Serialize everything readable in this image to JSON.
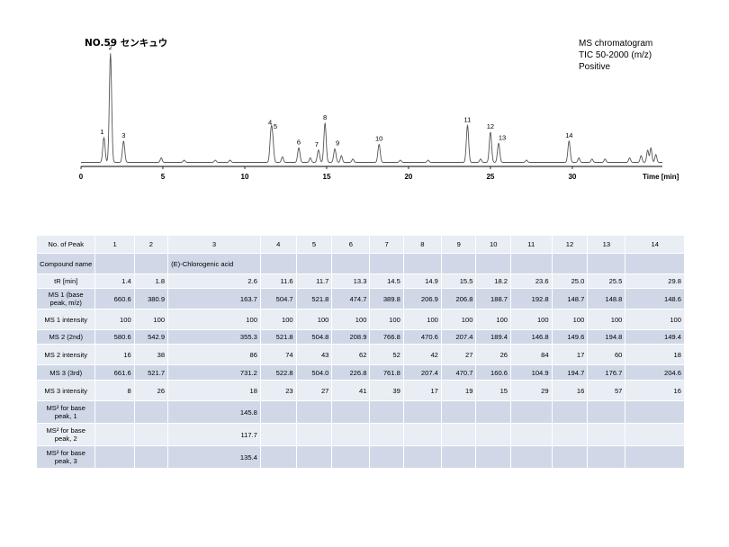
{
  "page": {
    "sample_title": "NO.59 センキュウ",
    "info": [
      "MS chromatogram",
      "TIC 50-2000 (m/z)",
      "Positive"
    ]
  },
  "chart_data": {
    "type": "line",
    "title": "",
    "xlabel": "Time [min]",
    "ylabel": "",
    "xlim": [
      0,
      35.5
    ],
    "ylim": [
      0,
      1
    ],
    "x_ticks": [
      0,
      5,
      10,
      15,
      20,
      25,
      30
    ],
    "grid": false,
    "baseline": 0.02,
    "peaks": [
      {
        "label": "1",
        "x": 1.4,
        "y": 0.22
      },
      {
        "label": "2",
        "x": 1.8,
        "y": 0.97
      },
      {
        "label": "3",
        "x": 2.6,
        "y": 0.19
      },
      {
        "label": "4",
        "x": 11.6,
        "y": 0.24
      },
      {
        "label": "5",
        "x": 11.7,
        "y": 0.18
      },
      {
        "label": "6",
        "x": 13.3,
        "y": 0.13
      },
      {
        "label": "7",
        "x": 14.5,
        "y": 0.11
      },
      {
        "label": "8",
        "x": 14.9,
        "y": 0.35
      },
      {
        "label": "9",
        "x": 15.5,
        "y": 0.12
      },
      {
        "label": "10",
        "x": 18.2,
        "y": 0.16
      },
      {
        "label": "11",
        "x": 23.6,
        "y": 0.33
      },
      {
        "label": "12",
        "x": 25.0,
        "y": 0.27
      },
      {
        "label": "13",
        "x": 25.5,
        "y": 0.17
      },
      {
        "label": "14",
        "x": 29.8,
        "y": 0.19
      }
    ],
    "minor_peaks": [
      {
        "x": 4.9,
        "y": 0.04
      },
      {
        "x": 6.3,
        "y": 0.02
      },
      {
        "x": 8.2,
        "y": 0.02
      },
      {
        "x": 9.1,
        "y": 0.02
      },
      {
        "x": 12.3,
        "y": 0.05
      },
      {
        "x": 14.0,
        "y": 0.04
      },
      {
        "x": 15.9,
        "y": 0.06
      },
      {
        "x": 16.6,
        "y": 0.03
      },
      {
        "x": 19.5,
        "y": 0.02
      },
      {
        "x": 21.2,
        "y": 0.02
      },
      {
        "x": 24.4,
        "y": 0.03
      },
      {
        "x": 27.2,
        "y": 0.02
      },
      {
        "x": 30.4,
        "y": 0.04
      },
      {
        "x": 31.2,
        "y": 0.03
      },
      {
        "x": 32.0,
        "y": 0.03
      },
      {
        "x": 33.5,
        "y": 0.04
      },
      {
        "x": 34.2,
        "y": 0.06
      },
      {
        "x": 34.6,
        "y": 0.11
      },
      {
        "x": 34.8,
        "y": 0.13
      },
      {
        "x": 35.1,
        "y": 0.07
      }
    ],
    "line_color": "#555555"
  },
  "table": {
    "row_labels": [
      "No. of Peak",
      "Compound name",
      "tR [min]",
      "MS 1 (base peak, m/z)",
      "MS 1 intensity",
      "MS 2 (2nd)",
      "MS 2 intensity",
      "MS 3 (3rd)",
      "MS 3 intensity",
      "MS² for base peak, 1",
      "MS² for base peak, 2",
      "MS² for base peak, 3"
    ],
    "peak_numbers": [
      "1",
      "2",
      "3",
      "4",
      "5",
      "6",
      "7",
      "8",
      "9",
      "10",
      "11",
      "12",
      "13",
      "14"
    ],
    "compound_names": [
      "",
      "",
      "(E)-Chlorogenic acid",
      "",
      "",
      "",
      "",
      "",
      "",
      "",
      "",
      "",
      "",
      ""
    ],
    "tR": [
      "1.4",
      "1.8",
      "2.6",
      "11.6",
      "11.7",
      "13.3",
      "14.5",
      "14.9",
      "15.5",
      "18.2",
      "23.6",
      "25.0",
      "25.5",
      "29.8"
    ],
    "ms1": [
      "660.6",
      "380.9",
      "163.7",
      "504.7",
      "521.8",
      "474.7",
      "389.8",
      "206.9",
      "206.8",
      "188.7",
      "192.8",
      "148.7",
      "148.8",
      "148.6"
    ],
    "ms1_int": [
      "100",
      "100",
      "100",
      "100",
      "100",
      "100",
      "100",
      "100",
      "100",
      "100",
      "100",
      "100",
      "100",
      "100"
    ],
    "ms2": [
      "580.6",
      "542.9",
      "355.3",
      "521.8",
      "504.8",
      "208.9",
      "766.8",
      "470.6",
      "207.4",
      "189.4",
      "146.8",
      "149.6",
      "194.8",
      "149.4"
    ],
    "ms2_int": [
      "16",
      "38",
      "86",
      "74",
      "43",
      "62",
      "52",
      "42",
      "27",
      "26",
      "84",
      "17",
      "60",
      "18"
    ],
    "ms3": [
      "661.6",
      "521.7",
      "731.2",
      "522.8",
      "504.0",
      "226.8",
      "761.8",
      "207.4",
      "470.7",
      "160.6",
      "104.9",
      "194.7",
      "176.7",
      "204.6"
    ],
    "ms3_int": [
      "8",
      "26",
      "18",
      "23",
      "27",
      "41",
      "39",
      "17",
      "19",
      "15",
      "29",
      "16",
      "57",
      "16"
    ],
    "msb1": [
      "",
      "",
      "145.8",
      "",
      "",
      "",
      "",
      "",
      "",
      "",
      "",
      "",
      "",
      ""
    ],
    "msb2": [
      "",
      "",
      "117.7",
      "",
      "",
      "",
      "",
      "",
      "",
      "",
      "",
      "",
      "",
      ""
    ],
    "msb3": [
      "",
      "",
      "135.4",
      "",
      "",
      "",
      "",
      "",
      "",
      "",
      "",
      "",
      "",
      ""
    ]
  }
}
